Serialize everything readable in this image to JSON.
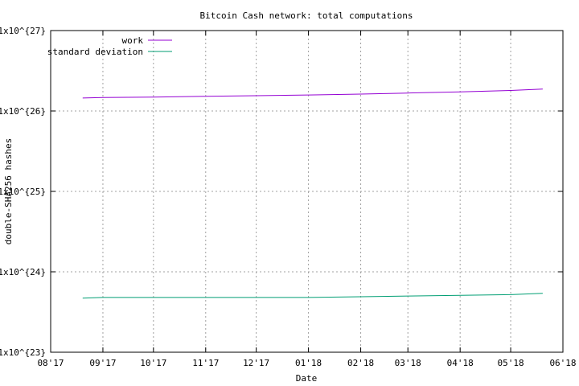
{
  "chart_data": {
    "type": "line",
    "title": "Bitcoin Cash network: total computations",
    "xlabel": "Date",
    "ylabel": "double-SHA256 hashes",
    "yscale": "log",
    "ylim": [
      1e+23,
      1e+27
    ],
    "xlim": [
      "2017-08-01",
      "2018-06-01"
    ],
    "grid": true,
    "legend_position": "top-left",
    "x_ticks": [
      "2017-08-01",
      "2017-09-01",
      "2017-10-01",
      "2017-11-01",
      "2017-12-01",
      "2018-01-01",
      "2018-02-01",
      "2018-03-01",
      "2018-04-01",
      "2018-05-01",
      "2018-06-01"
    ],
    "x_tick_labels": [
      "08'17",
      "09'17",
      "10'17",
      "11'17",
      "12'17",
      "01'18",
      "02'18",
      "03'18",
      "04'18",
      "05'18",
      "06'18"
    ],
    "y_ticks": [
      1e+23,
      1e+24,
      1e+25,
      1e+26,
      1e+27
    ],
    "y_tick_labels": [
      "1x10^{23}",
      "1x10^{24}",
      "1x10^{25}",
      "1x10^{26}",
      "1x10^{27}"
    ],
    "series": [
      {
        "name": "work",
        "color": "#9400d3",
        "x": [
          "2017-08-20",
          "2017-09-01",
          "2017-10-01",
          "2017-11-01",
          "2017-12-01",
          "2018-01-01",
          "2018-02-01",
          "2018-03-01",
          "2018-04-01",
          "2018-05-01",
          "2018-05-20"
        ],
        "y": [
          1.45e+26,
          1.47e+26,
          1.49e+26,
          1.52e+26,
          1.55e+26,
          1.58e+26,
          1.62e+26,
          1.67e+26,
          1.73e+26,
          1.8e+26,
          1.87e+26
        ]
      },
      {
        "name": "standard deviation",
        "color": "#009e73",
        "x": [
          "2017-08-20",
          "2017-09-01",
          "2017-10-01",
          "2017-11-01",
          "2017-12-01",
          "2018-01-01",
          "2018-02-01",
          "2018-03-01",
          "2018-04-01",
          "2018-05-01",
          "2018-05-20"
        ],
        "y": [
          4.7e+23,
          4.8e+23,
          4.8e+23,
          4.8e+23,
          4.8e+23,
          4.8e+23,
          4.9e+23,
          5e+23,
          5.1e+23,
          5.2e+23,
          5.4e+23
        ]
      }
    ]
  }
}
